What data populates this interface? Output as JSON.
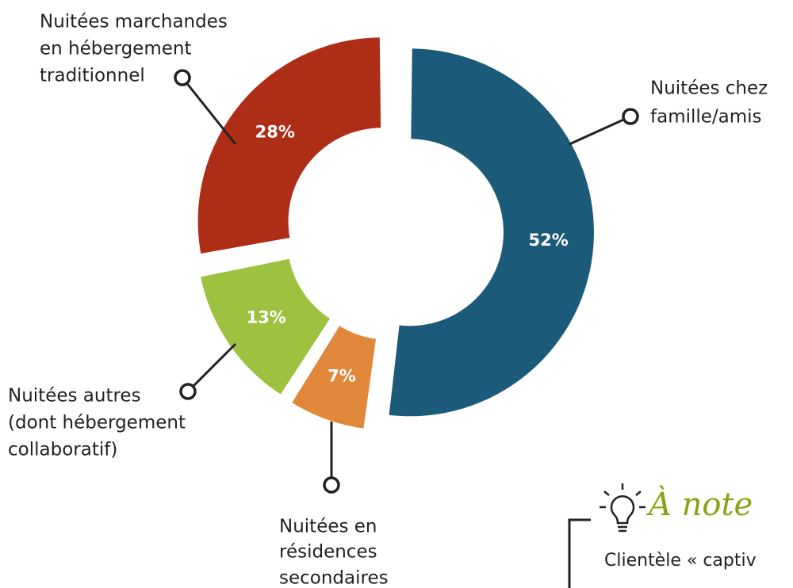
{
  "chart_data": {
    "type": "donut",
    "categories": [
      [
        "Nuitées chez",
        "famille/amis"
      ],
      [
        "Nuitées en",
        "résidences",
        "secondaires"
      ],
      [
        "Nuitées autres",
        "(dont hébergement",
        "collaboratif)"
      ],
      [
        "Nuitées marchandes",
        "en hébergement",
        "traditionnel"
      ]
    ],
    "values": [
      52,
      7,
      13,
      28
    ],
    "value_labels": [
      "52%",
      "7%",
      "13%",
      "28%"
    ],
    "colors": [
      "#1b5a78",
      "#e0873a",
      "#9dc23f",
      "#ae2d17"
    ]
  },
  "note": {
    "title": "À note",
    "text": "Clientèle « captiv"
  }
}
